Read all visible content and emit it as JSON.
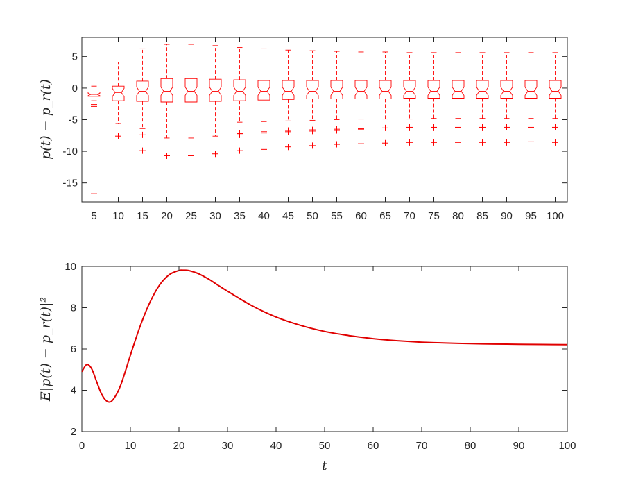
{
  "chart_data": [
    {
      "type": "box",
      "xlabel": "",
      "ylabel": "p(t) − p_r(t)",
      "ylim": [
        -18,
        8
      ],
      "yticks": [
        5,
        0,
        -5,
        -10,
        -15
      ],
      "categories": [
        "5",
        "10",
        "15",
        "20",
        "25",
        "30",
        "35",
        "40",
        "45",
        "50",
        "55",
        "60",
        "65",
        "70",
        "75",
        "80",
        "85",
        "90",
        "95",
        "100"
      ],
      "notched": true,
      "color": "#ff0000",
      "boxes": [
        {
          "label": "5",
          "q1": -1.3,
          "median": -1.0,
          "q3": -0.6,
          "whisker_low": -2.0,
          "whisker_high": 0.3,
          "outliers": [
            -2.6,
            -2.9,
            -16.7
          ]
        },
        {
          "label": "10",
          "q1": -2.0,
          "median": -0.7,
          "q3": 0.3,
          "whisker_low": -5.6,
          "whisker_high": 4.1,
          "outliers": [
            -7.6
          ]
        },
        {
          "label": "15",
          "q1": -2.1,
          "median": -0.5,
          "q3": 1.1,
          "whisker_low": -6.4,
          "whisker_high": 6.2,
          "outliers": [
            -7.4,
            -9.9
          ]
        },
        {
          "label": "20",
          "q1": -2.2,
          "median": -0.5,
          "q3": 1.5,
          "whisker_low": -7.9,
          "whisker_high": 6.9,
          "outliers": [
            -10.7
          ]
        },
        {
          "label": "25",
          "q1": -2.2,
          "median": -0.5,
          "q3": 1.5,
          "whisker_low": -7.9,
          "whisker_high": 6.9,
          "outliers": [
            -10.7
          ]
        },
        {
          "label": "30",
          "q1": -2.1,
          "median": -0.5,
          "q3": 1.4,
          "whisker_low": -7.6,
          "whisker_high": 6.7,
          "outliers": [
            -10.4
          ]
        },
        {
          "label": "35",
          "q1": -2.0,
          "median": -0.5,
          "q3": 1.3,
          "whisker_low": -5.4,
          "whisker_high": 6.4,
          "outliers": [
            -7.2,
            -7.4,
            -9.9
          ]
        },
        {
          "label": "40",
          "q1": -1.9,
          "median": -0.5,
          "q3": 1.2,
          "whisker_low": -5.3,
          "whisker_high": 6.2,
          "outliers": [
            -6.9,
            -7.1,
            -9.7
          ]
        },
        {
          "label": "45",
          "q1": -1.8,
          "median": -0.5,
          "q3": 1.2,
          "whisker_low": -5.2,
          "whisker_high": 6.0,
          "outliers": [
            -6.7,
            -6.9,
            -9.3
          ]
        },
        {
          "label": "50",
          "q1": -1.7,
          "median": -0.5,
          "q3": 1.2,
          "whisker_low": -5.1,
          "whisker_high": 5.9,
          "outliers": [
            -6.6,
            -6.8,
            -9.1
          ]
        },
        {
          "label": "55",
          "q1": -1.7,
          "median": -0.5,
          "q3": 1.2,
          "whisker_low": -5.0,
          "whisker_high": 5.8,
          "outliers": [
            -6.5,
            -6.7,
            -8.9
          ]
        },
        {
          "label": "60",
          "q1": -1.7,
          "median": -0.5,
          "q3": 1.2,
          "whisker_low": -4.9,
          "whisker_high": 5.7,
          "outliers": [
            -6.4,
            -6.5,
            -8.8
          ]
        },
        {
          "label": "65",
          "q1": -1.7,
          "median": -0.5,
          "q3": 1.2,
          "whisker_low": -4.9,
          "whisker_high": 5.7,
          "outliers": [
            -6.3,
            -8.7
          ]
        },
        {
          "label": "70",
          "q1": -1.6,
          "median": -0.5,
          "q3": 1.2,
          "whisker_low": -4.9,
          "whisker_high": 5.6,
          "outliers": [
            -6.2,
            -6.3,
            -8.6
          ]
        },
        {
          "label": "75",
          "q1": -1.6,
          "median": -0.5,
          "q3": 1.2,
          "whisker_low": -4.8,
          "whisker_high": 5.6,
          "outliers": [
            -6.2,
            -6.3,
            -8.6
          ]
        },
        {
          "label": "80",
          "q1": -1.6,
          "median": -0.5,
          "q3": 1.2,
          "whisker_low": -4.8,
          "whisker_high": 5.6,
          "outliers": [
            -6.2,
            -6.3,
            -8.6
          ]
        },
        {
          "label": "85",
          "q1": -1.6,
          "median": -0.5,
          "q3": 1.2,
          "whisker_low": -4.8,
          "whisker_high": 5.6,
          "outliers": [
            -6.2,
            -6.3,
            -8.6
          ]
        },
        {
          "label": "90",
          "q1": -1.6,
          "median": -0.5,
          "q3": 1.2,
          "whisker_low": -4.8,
          "whisker_high": 5.6,
          "outliers": [
            -6.2,
            -8.6
          ]
        },
        {
          "label": "95",
          "q1": -1.6,
          "median": -0.5,
          "q3": 1.2,
          "whisker_low": -4.8,
          "whisker_high": 5.6,
          "outliers": [
            -6.2,
            -8.5
          ]
        },
        {
          "label": "100",
          "q1": -1.6,
          "median": -0.5,
          "q3": 1.2,
          "whisker_low": -4.8,
          "whisker_high": 5.6,
          "outliers": [
            -6.2,
            -8.6
          ]
        }
      ]
    },
    {
      "type": "line",
      "xlabel": "t",
      "ylabel": "E|p(t) − p_r(t)|²",
      "xlim": [
        0,
        100
      ],
      "ylim": [
        2,
        10
      ],
      "xticks": [
        0,
        10,
        20,
        30,
        40,
        50,
        60,
        70,
        80,
        90,
        100
      ],
      "yticks": [
        2,
        4,
        6,
        8,
        10
      ],
      "color": "#e00000",
      "series": [
        {
          "x": [
            0,
            1,
            2,
            3,
            4,
            5,
            6,
            7,
            8,
            9,
            10,
            12,
            14,
            16,
            18,
            20,
            21,
            22,
            24,
            26,
            28,
            30,
            35,
            40,
            45,
            50,
            55,
            60,
            65,
            70,
            75,
            80,
            85,
            90,
            95,
            100
          ],
          "y": [
            4.9,
            5.25,
            5.05,
            4.45,
            3.85,
            3.5,
            3.45,
            3.75,
            4.25,
            4.95,
            5.7,
            7.1,
            8.25,
            9.1,
            9.6,
            9.8,
            9.82,
            9.8,
            9.65,
            9.4,
            9.1,
            8.8,
            8.1,
            7.55,
            7.15,
            6.85,
            6.65,
            6.5,
            6.4,
            6.33,
            6.29,
            6.26,
            6.24,
            6.23,
            6.22,
            6.21
          ]
        }
      ]
    }
  ]
}
